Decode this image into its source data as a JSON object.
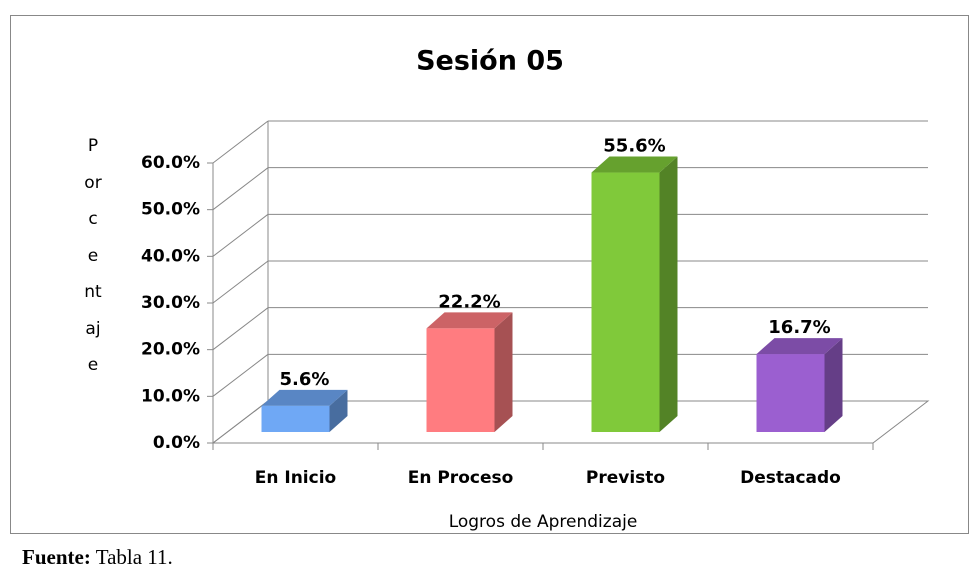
{
  "chart_data": {
    "type": "bar3d",
    "title": "Sesión 05",
    "categories": [
      "En Inicio",
      "En Proceso",
      "Previsto",
      "Destacado"
    ],
    "values": [
      5.6,
      22.2,
      55.6,
      16.7
    ],
    "value_labels": [
      "5.6%",
      "22.2%",
      "55.6%",
      "16.7%"
    ],
    "colors": [
      "#6fa8f5",
      "#ff7c80",
      "#80c93a",
      "#9b5fd0"
    ],
    "ylabel": "Porcentaje",
    "xlabel": "Logros de Aprendizaje",
    "ylim": [
      0,
      60
    ],
    "yticks": [
      {
        "value": 0,
        "label": "0.0%"
      },
      {
        "value": 10,
        "label": "10.0%"
      },
      {
        "value": 20,
        "label": "20.0%"
      },
      {
        "value": 30,
        "label": "30.0%"
      },
      {
        "value": 40,
        "label": "40.0%"
      },
      {
        "value": 50,
        "label": "50.0%"
      },
      {
        "value": 60,
        "label": "60.0%"
      }
    ],
    "grid": true
  },
  "source": {
    "label": "Fuente:",
    "text": "Tabla 11."
  }
}
